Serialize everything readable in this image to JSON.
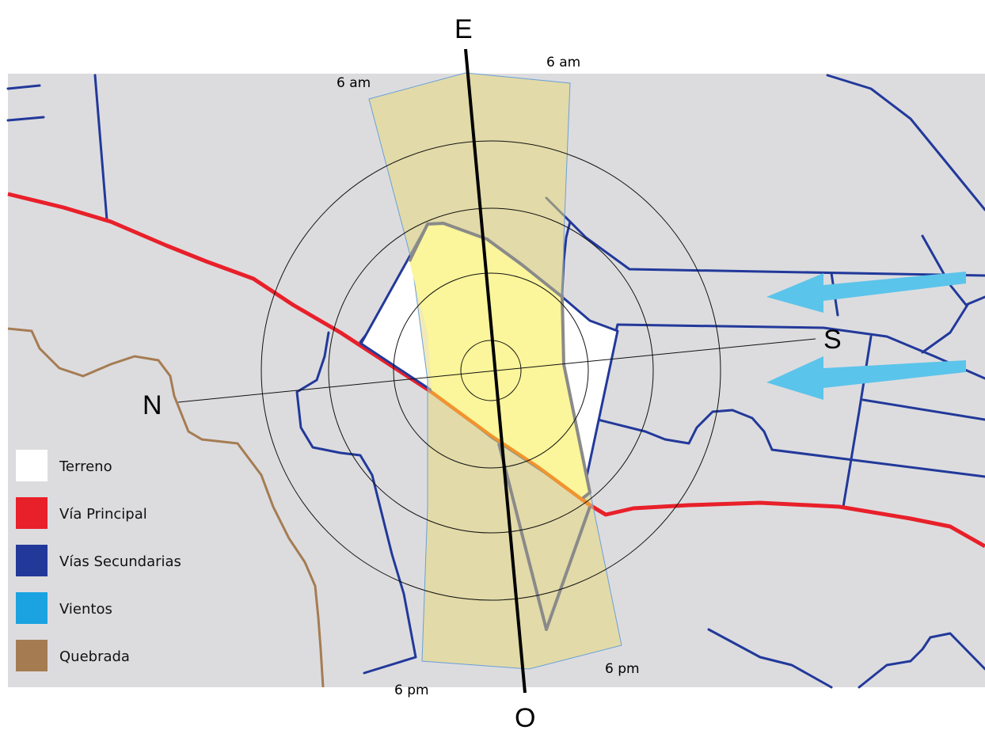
{
  "compass": {
    "north": "N",
    "south": "S",
    "east": "E",
    "west": "O"
  },
  "sun_path": {
    "sunrise_left": "6 am",
    "sunrise_right": "6 am",
    "sunset_left": "6 pm",
    "sunset_right": "6 pm"
  },
  "legend": [
    {
      "label": "Terreno",
      "color": "#ffffff"
    },
    {
      "label": "Vía Principal",
      "color": "#e8202a"
    },
    {
      "label": "Vías Secundarias",
      "color": "#22399a"
    },
    {
      "label": "Vientos",
      "color": "#1aa3e0"
    },
    {
      "label": "Quebrada",
      "color": "#a57c52"
    }
  ],
  "colors": {
    "background": "#dcdcdf",
    "sun_band": "#eee3a3",
    "site_highlight": "#fbf59b",
    "site_outline": "#8a8a8a",
    "wind": "#5bc4ea"
  }
}
